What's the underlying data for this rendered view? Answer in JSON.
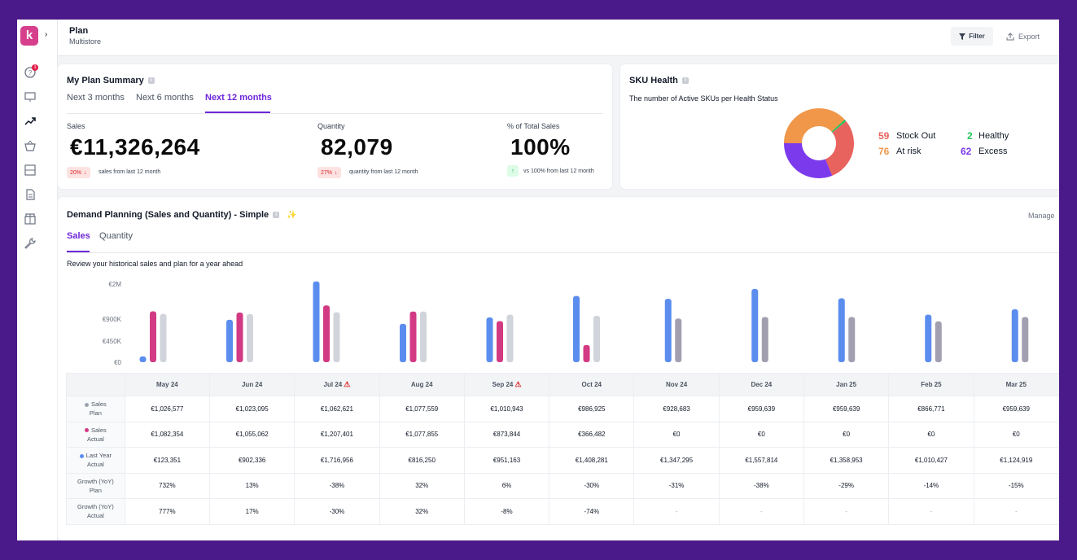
{
  "app": {
    "logo_letter": "k",
    "page_title": "Plan",
    "page_subtitle": "Multistore",
    "notification_count": "1"
  },
  "toolbar": {
    "filter_label": "Filter",
    "export_label": "Export"
  },
  "plan_summary": {
    "title": "My Plan Summary",
    "tabs": [
      "Next 3 months",
      "Next 6 months",
      "Next 12 months"
    ],
    "active_tab": 2,
    "metrics": [
      {
        "label": "Sales",
        "value": "€11,326,264",
        "pill": "20%",
        "pill_dir": "down",
        "note": "sales from last 12 month"
      },
      {
        "label": "Quantity",
        "value": "82,079",
        "pill": "27%",
        "pill_dir": "down",
        "note": "quantity from last 12 month"
      },
      {
        "label": "% of Total Sales",
        "value": "100%",
        "pill": "",
        "pill_dir": "up",
        "note": "vs 100% from last 12 month"
      }
    ]
  },
  "sku_health": {
    "title": "SKU Health",
    "subtitle": "The number of Active SKUs per Health Status",
    "statuses": [
      {
        "name": "Stock Out",
        "count": 59,
        "color": "#e8625e"
      },
      {
        "name": "At risk",
        "count": 76,
        "color": "#f0974a"
      },
      {
        "name": "Healthy",
        "count": 2,
        "color": "#22c55e"
      },
      {
        "name": "Excess",
        "count": 62,
        "color": "#7c3aed"
      }
    ]
  },
  "demand": {
    "title": "Demand Planning (Sales and Quantity) - Simple",
    "manage_label": "Manage",
    "tabs": [
      "Sales",
      "Quantity"
    ],
    "active_tab": 0,
    "description": "Review your historical sales and plan for a year ahead",
    "row_labels": [
      {
        "line1": "Sales",
        "line2": "Plan",
        "dot": "#9ca3af"
      },
      {
        "line1": "Sales",
        "line2": "Actual",
        "dot": "#d23a84"
      },
      {
        "line1": "Last Year",
        "line2": "Actual",
        "dot": "#5b8def"
      },
      {
        "line1": "Growth (YoY)",
        "line2": "Plan",
        "dot": ""
      },
      {
        "line1": "Growth (YoY)",
        "line2": "Actual",
        "dot": ""
      }
    ],
    "months": [
      {
        "label": "May 24",
        "warn": false,
        "plan": "€1,026,577",
        "actual": "€1,082,354",
        "last_year": "€123,351",
        "growth_plan": "732%",
        "growth_actual": "777%"
      },
      {
        "label": "Jun 24",
        "warn": false,
        "plan": "€1,023,095",
        "actual": "€1,055,062",
        "last_year": "€902,336",
        "growth_plan": "13%",
        "growth_actual": "17%"
      },
      {
        "label": "Jul 24",
        "warn": true,
        "plan": "€1,062,621",
        "actual": "€1,207,401",
        "last_year": "€1,716,956",
        "growth_plan": "-38%",
        "growth_actual": "-30%"
      },
      {
        "label": "Aug 24",
        "warn": false,
        "plan": "€1,077,559",
        "actual": "€1,077,855",
        "last_year": "€816,250",
        "growth_plan": "32%",
        "growth_actual": "32%"
      },
      {
        "label": "Sep 24",
        "warn": true,
        "plan": "€1,010,943",
        "actual": "€873,844",
        "last_year": "€951,163",
        "growth_plan": "6%",
        "growth_actual": "-8%"
      },
      {
        "label": "Oct 24",
        "warn": false,
        "plan": "€986,925",
        "actual": "€366,482",
        "last_year": "€1,408,281",
        "growth_plan": "-30%",
        "growth_actual": "-74%"
      },
      {
        "label": "Nov 24",
        "warn": false,
        "plan": "€928,683",
        "actual": "€0",
        "last_year": "€1,347,295",
        "growth_plan": "-31%",
        "growth_actual": "-"
      },
      {
        "label": "Dec 24",
        "warn": false,
        "plan": "€959,639",
        "actual": "€0",
        "last_year": "€1,557,814",
        "growth_plan": "-38%",
        "growth_actual": "-"
      },
      {
        "label": "Jan 25",
        "warn": false,
        "plan": "€959,639",
        "actual": "€0",
        "last_year": "€1,358,953",
        "growth_plan": "-29%",
        "growth_actual": "-"
      },
      {
        "label": "Feb 25",
        "warn": false,
        "plan": "€866,771",
        "actual": "€0",
        "last_year": "€1,010,427",
        "growth_plan": "-14%",
        "growth_actual": "-"
      },
      {
        "label": "Mar 25",
        "warn": false,
        "plan": "€959,639",
        "actual": "€0",
        "last_year": "€1,124,919",
        "growth_plan": "-15%",
        "growth_actual": "-"
      }
    ]
  },
  "chart_data": {
    "type": "bar",
    "categories": [
      "May 24",
      "Jun 24",
      "Jul 24",
      "Aug 24",
      "Sep 24",
      "Oct 24",
      "Nov 24",
      "Dec 24",
      "Jan 25",
      "Feb 25",
      "Mar 25"
    ],
    "series": [
      {
        "name": "Last Year Actual",
        "color": "#5b8def",
        "values": [
          123351,
          902336,
          1716956,
          816250,
          951163,
          1408281,
          1347295,
          1557814,
          1358953,
          1010427,
          1124919
        ]
      },
      {
        "name": "Sales Actual",
        "color": "#d23a84",
        "values": [
          1082354,
          1055062,
          1207401,
          1077855,
          873844,
          366482,
          0,
          0,
          0,
          0,
          0
        ]
      },
      {
        "name": "Sales Plan",
        "color": "#d1d5db",
        "values": [
          1026577,
          1023095,
          1062621,
          1077559,
          1010943,
          986925,
          928683,
          959639,
          959639,
          866771,
          959639
        ]
      }
    ],
    "y_ticks": [
      "€0",
      "€450K",
      "€900K",
      "€2M"
    ],
    "y_tick_values": [
      0,
      450000,
      900000,
      1800000
    ],
    "ylim": [
      0,
      1800000
    ]
  }
}
